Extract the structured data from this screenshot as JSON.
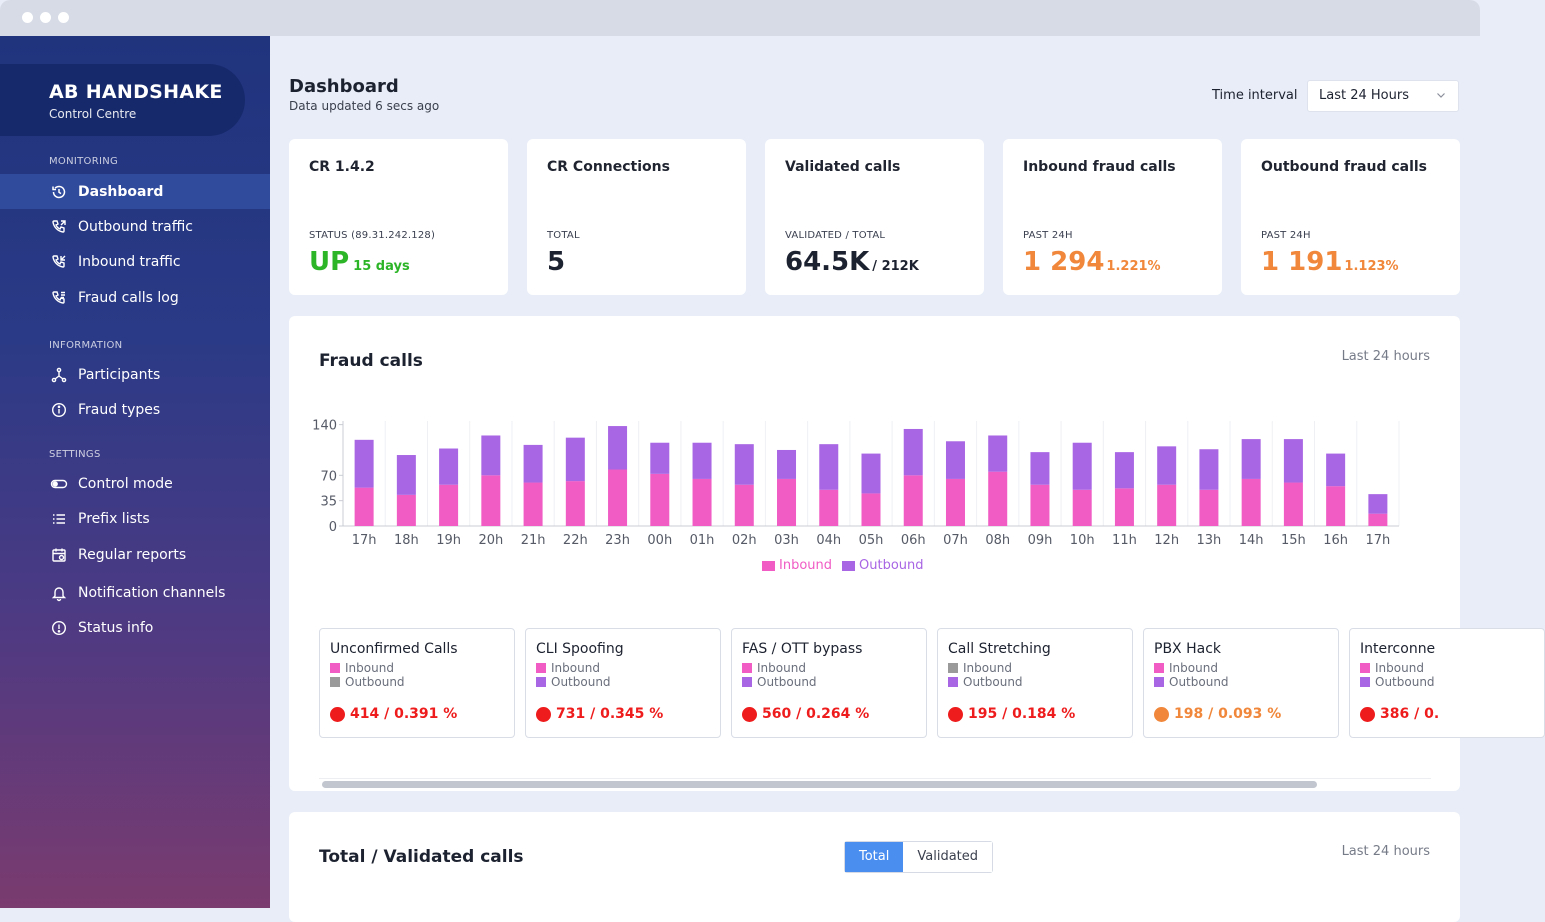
{
  "app": {
    "brand_title": "AB HANDSHAKE",
    "brand_subtitle": "Control Centre"
  },
  "sidebar": {
    "sections": [
      {
        "label": "MONITORING"
      },
      {
        "label": "INFORMATION"
      },
      {
        "label": "SETTINGS"
      }
    ],
    "items": [
      {
        "label": "Dashboard",
        "icon": "history-icon",
        "active": true
      },
      {
        "label": "Outbound traffic",
        "icon": "phone-outgoing-icon"
      },
      {
        "label": "Inbound traffic",
        "icon": "phone-incoming-icon"
      },
      {
        "label": "Fraud calls log",
        "icon": "phone-list-icon"
      },
      {
        "label": "Participants",
        "icon": "network-icon"
      },
      {
        "label": "Fraud types",
        "icon": "info-icon"
      },
      {
        "label": "Control mode",
        "icon": "toggle-icon"
      },
      {
        "label": "Prefix lists",
        "icon": "list-icon"
      },
      {
        "label": "Regular reports",
        "icon": "calendar-icon"
      },
      {
        "label": "Notification channels",
        "icon": "bell-icon"
      },
      {
        "label": "Status info",
        "icon": "alert-icon"
      }
    ]
  },
  "header": {
    "title": "Dashboard",
    "subtitle": "Data updated 6 secs ago",
    "time_interval_label": "Time interval",
    "time_interval_value": "Last 24 Hours"
  },
  "stats": [
    {
      "title": "CR 1.4.2",
      "label": "STATUS (89.31.242.128)",
      "value": "UP",
      "small": "15 days",
      "color": "#2db528"
    },
    {
      "title": "CR Connections",
      "label": "TOTAL",
      "value": "5",
      "small": "",
      "color": "#1d2230"
    },
    {
      "title": "Validated calls",
      "label": "VALIDATED / TOTAL",
      "value": "64.5K",
      "small": "/ 212K",
      "color": "#1d2230"
    },
    {
      "title": "Inbound fraud calls",
      "label": "PAST 24H",
      "value": "1 294",
      "small": "1.221%",
      "color": "#f0873a"
    },
    {
      "title": "Outbound fraud calls",
      "label": "PAST 24H",
      "value": "1 191",
      "small": "1.123%",
      "color": "#f0873a"
    }
  ],
  "fraud_card": {
    "title": "Fraud calls",
    "hint": "Last 24 hours"
  },
  "chart_data": {
    "type": "bar",
    "stacked": true,
    "categories": [
      "17h",
      "18h",
      "19h",
      "20h",
      "21h",
      "22h",
      "23h",
      "00h",
      "01h",
      "02h",
      "03h",
      "04h",
      "05h",
      "06h",
      "07h",
      "08h",
      "09h",
      "10h",
      "11h",
      "12h",
      "13h",
      "14h",
      "15h",
      "16h",
      "17h"
    ],
    "series": [
      {
        "name": "Inbound",
        "color": "#f05bc4",
        "values": [
          53,
          43,
          57,
          70,
          60,
          62,
          78,
          72,
          65,
          57,
          65,
          50,
          45,
          70,
          65,
          75,
          57,
          50,
          52,
          57,
          50,
          65,
          60,
          55,
          17
        ]
      },
      {
        "name": "Outbound",
        "color": "#a865e4",
        "values": [
          66,
          55,
          50,
          55,
          52,
          60,
          60,
          43,
          50,
          56,
          40,
          63,
          55,
          64,
          52,
          50,
          45,
          65,
          50,
          53,
          56,
          55,
          60,
          45,
          27
        ]
      }
    ],
    "y_ticks": [
      0,
      35,
      70,
      140
    ],
    "ylim": [
      0,
      145
    ],
    "legend_position": "bottom"
  },
  "fraud_types": [
    {
      "title": "Unconfirmed Calls",
      "inbound": "Inbound",
      "outbound": "Outbound",
      "in_color": "#f05bc4",
      "out_color": "#9a9a9a",
      "value": "414 / 0.391 %",
      "dot": "#ee1c1c"
    },
    {
      "title": "CLI Spoofing",
      "inbound": "Inbound",
      "outbound": "Outbound",
      "in_color": "#f05bc4",
      "out_color": "#a865e4",
      "value": "731 / 0.345 %",
      "dot": "#ee1c1c"
    },
    {
      "title": "FAS / OTT bypass",
      "inbound": "Inbound",
      "outbound": "Outbound",
      "in_color": "#f05bc4",
      "out_color": "#a865e4",
      "value": "560 / 0.264 %",
      "dot": "#ee1c1c"
    },
    {
      "title": "Call Stretching",
      "inbound": "Inbound",
      "outbound": "Outbound",
      "in_color": "#9a9a9a",
      "out_color": "#a865e4",
      "value": "195 / 0.184 %",
      "dot": "#ee1c1c"
    },
    {
      "title": "PBX Hack",
      "inbound": "Inbound",
      "outbound": "Outbound",
      "in_color": "#f05bc4",
      "out_color": "#a865e4",
      "value": "198 / 0.093 %",
      "dot": "#f0873a"
    },
    {
      "title": "Interconne",
      "inbound": "Inbound",
      "outbound": "Outbound",
      "in_color": "#f05bc4",
      "out_color": "#a865e4",
      "value": "386 / 0.",
      "dot": "#ee1c1c"
    }
  ],
  "total_card": {
    "title": "Total / Validated calls",
    "hint": "Last 24 hours",
    "toggle_total": "Total",
    "toggle_validated": "Validated"
  }
}
